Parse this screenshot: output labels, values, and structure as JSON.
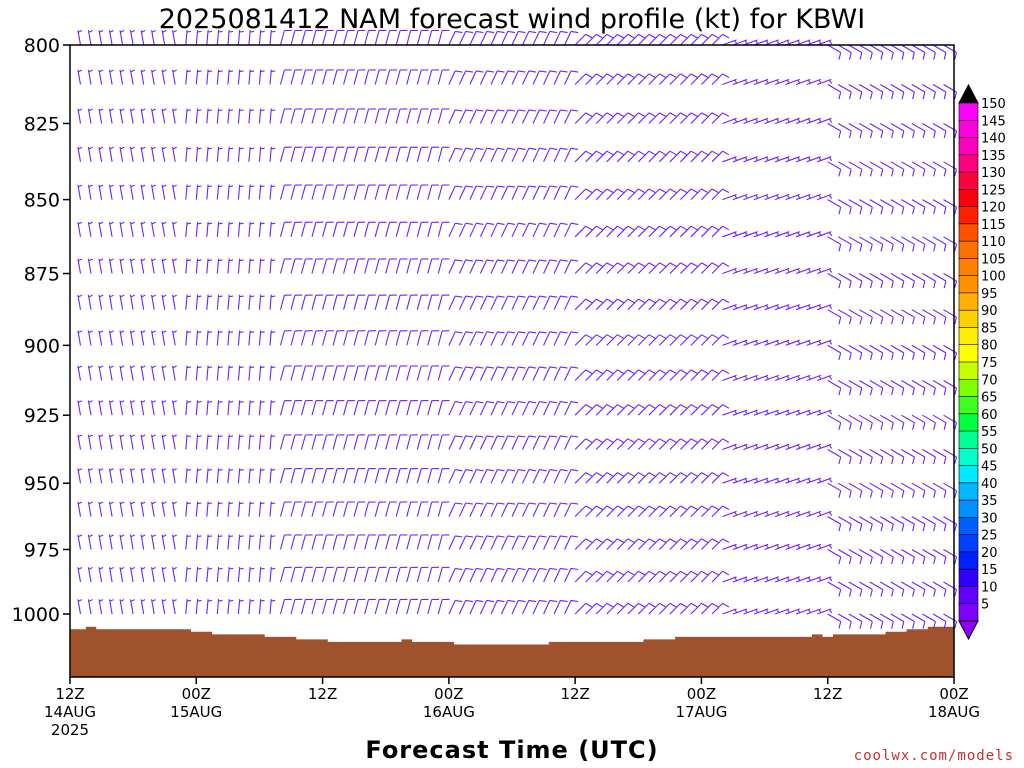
{
  "chart_data": {
    "type": "wind-barb-profile",
    "title": "2025081412 NAM forecast wind profile (kt) for KBWI",
    "xlabel": "Forecast Time (UTC)",
    "ylabel": "",
    "y_axis": {
      "scale": "log-pressure",
      "ticks": [
        800,
        825,
        850,
        875,
        900,
        925,
        950,
        975,
        1000
      ],
      "range": [
        800,
        1025
      ]
    },
    "x_axis": {
      "range_hours": [
        0,
        84
      ],
      "ticks": [
        {
          "hour": 0,
          "time": "12Z",
          "date": "14AUG",
          "year": "2025"
        },
        {
          "hour": 12,
          "time": "00Z",
          "date": "15AUG",
          "year": ""
        },
        {
          "hour": 24,
          "time": "12Z",
          "date": "",
          "year": ""
        },
        {
          "hour": 36,
          "time": "00Z",
          "date": "16AUG",
          "year": ""
        },
        {
          "hour": 48,
          "time": "12Z",
          "date": "",
          "year": ""
        },
        {
          "hour": 60,
          "time": "00Z",
          "date": "17AUG",
          "year": ""
        },
        {
          "hour": 72,
          "time": "12Z",
          "date": "",
          "year": ""
        },
        {
          "hour": 84,
          "time": "00Z",
          "date": "18AUG",
          "year": ""
        }
      ]
    },
    "levels_hpa": [
      800,
      812.5,
      825,
      837.5,
      850,
      862.5,
      875,
      887.5,
      900,
      912.5,
      925,
      937.5,
      950,
      962.5,
      975,
      987.5,
      1000
    ],
    "times_hours": [
      1,
      2,
      3,
      4,
      5,
      6,
      7,
      8,
      9,
      10,
      11,
      12,
      13,
      14,
      15,
      16,
      17,
      18,
      19,
      20,
      21,
      22,
      23,
      24,
      25,
      26,
      27,
      28,
      29,
      30,
      31,
      32,
      33,
      34,
      35,
      36,
      37,
      38,
      39,
      40,
      41,
      42,
      43,
      44,
      45,
      46,
      47,
      48,
      49,
      50,
      51,
      52,
      53,
      54,
      55,
      56,
      57,
      58,
      59,
      60,
      61,
      62,
      63,
      64,
      65,
      66,
      67,
      68,
      69,
      70,
      71,
      72,
      73,
      74,
      75,
      76,
      77,
      78,
      79,
      80,
      81,
      82,
      83
    ],
    "wind_regimes": [
      {
        "from_hour": 0,
        "to_hour": 11,
        "direction_deg": 350,
        "speed_kt": 7
      },
      {
        "from_hour": 11,
        "to_hour": 20,
        "direction_deg": 5,
        "speed_kt": 8
      },
      {
        "from_hour": 20,
        "to_hour": 36,
        "direction_deg": 15,
        "speed_kt": 10
      },
      {
        "from_hour": 36,
        "to_hour": 48,
        "direction_deg": 25,
        "speed_kt": 12
      },
      {
        "from_hour": 48,
        "to_hour": 62,
        "direction_deg": 45,
        "speed_kt": 10
      },
      {
        "from_hour": 62,
        "to_hour": 72,
        "direction_deg": 70,
        "speed_kt": 8
      },
      {
        "from_hour": 72,
        "to_hour": 84,
        "direction_deg": 120,
        "speed_kt": 12
      }
    ],
    "terrain_surface_pressure": [
      {
        "hour": 0,
        "pressure_hpa": 1006
      },
      {
        "hour": 1.5,
        "pressure_hpa": 1006
      },
      {
        "hour": 1.5,
        "pressure_hpa": 1005
      },
      {
        "hour": 2.5,
        "pressure_hpa": 1005
      },
      {
        "hour": 2.5,
        "pressure_hpa": 1006
      },
      {
        "hour": 11.5,
        "pressure_hpa": 1006
      },
      {
        "hour": 11.5,
        "pressure_hpa": 1007
      },
      {
        "hour": 13.5,
        "pressure_hpa": 1007
      },
      {
        "hour": 13.5,
        "pressure_hpa": 1008
      },
      {
        "hour": 18.5,
        "pressure_hpa": 1008
      },
      {
        "hour": 18.5,
        "pressure_hpa": 1009
      },
      {
        "hour": 21.5,
        "pressure_hpa": 1009
      },
      {
        "hour": 21.5,
        "pressure_hpa": 1010
      },
      {
        "hour": 24.5,
        "pressure_hpa": 1010
      },
      {
        "hour": 24.5,
        "pressure_hpa": 1011
      },
      {
        "hour": 31.5,
        "pressure_hpa": 1011
      },
      {
        "hour": 31.5,
        "pressure_hpa": 1010
      },
      {
        "hour": 32.5,
        "pressure_hpa": 1010
      },
      {
        "hour": 32.5,
        "pressure_hpa": 1011
      },
      {
        "hour": 36.5,
        "pressure_hpa": 1011
      },
      {
        "hour": 36.5,
        "pressure_hpa": 1012
      },
      {
        "hour": 45.5,
        "pressure_hpa": 1012
      },
      {
        "hour": 45.5,
        "pressure_hpa": 1011
      },
      {
        "hour": 54.5,
        "pressure_hpa": 1011
      },
      {
        "hour": 54.5,
        "pressure_hpa": 1010
      },
      {
        "hour": 57.5,
        "pressure_hpa": 1010
      },
      {
        "hour": 57.5,
        "pressure_hpa": 1009
      },
      {
        "hour": 70.5,
        "pressure_hpa": 1009
      },
      {
        "hour": 70.5,
        "pressure_hpa": 1008
      },
      {
        "hour": 71.5,
        "pressure_hpa": 1008
      },
      {
        "hour": 71.5,
        "pressure_hpa": 1009
      },
      {
        "hour": 72.5,
        "pressure_hpa": 1009
      },
      {
        "hour": 72.5,
        "pressure_hpa": 1008
      },
      {
        "hour": 77.5,
        "pressure_hpa": 1008
      },
      {
        "hour": 77.5,
        "pressure_hpa": 1007
      },
      {
        "hour": 79.5,
        "pressure_hpa": 1007
      },
      {
        "hour": 79.5,
        "pressure_hpa": 1006
      },
      {
        "hour": 81.5,
        "pressure_hpa": 1006
      },
      {
        "hour": 81.5,
        "pressure_hpa": 1005
      },
      {
        "hour": 84,
        "pressure_hpa": 1005
      }
    ],
    "colorbar": {
      "labels": [
        150,
        145,
        140,
        135,
        130,
        125,
        120,
        115,
        110,
        105,
        100,
        95,
        90,
        85,
        80,
        75,
        70,
        65,
        60,
        55,
        50,
        45,
        40,
        35,
        30,
        25,
        20,
        15,
        10,
        5
      ],
      "colors": [
        "#ff00ff",
        "#ff00e0",
        "#ff00c0",
        "#ff0080",
        "#ff0040",
        "#ff0010",
        "#ff2000",
        "#ff5000",
        "#ff7000",
        "#ff8000",
        "#ff9000",
        "#ffb000",
        "#ffd000",
        "#ffee00",
        "#ffff00",
        "#c8ff00",
        "#80ff00",
        "#40ff20",
        "#00ff40",
        "#00ff90",
        "#00ffcc",
        "#00e8ff",
        "#00b8ff",
        "#0090ff",
        "#0060ff",
        "#0040ff",
        "#0020ff",
        "#3000ff",
        "#6000ff",
        "#8000ff"
      ],
      "top_cap_color": "#000000",
      "bottom_cap_color": "#9000ff"
    },
    "barb_color": "#7020ff",
    "terrain_color": "#a0522d",
    "credit": "coolwx.com/models"
  }
}
